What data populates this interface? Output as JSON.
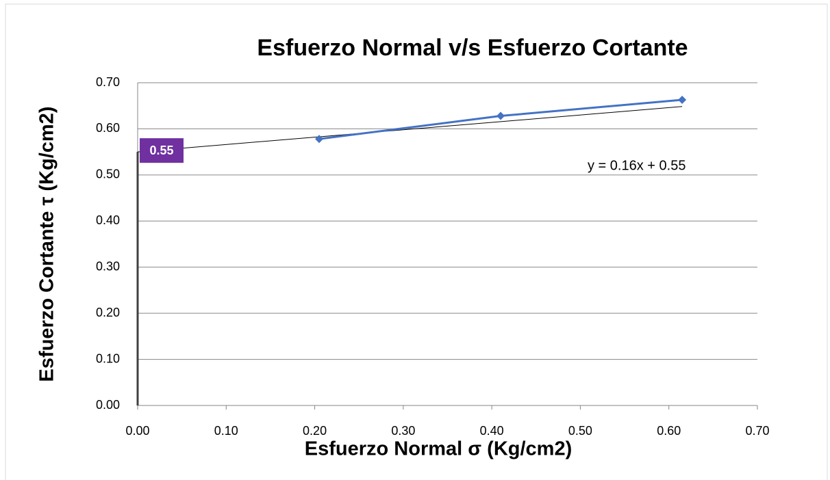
{
  "chart_data": {
    "type": "line",
    "title": "Esfuerzo Normal v/s Esfuerzo Cortante",
    "x_label": "Esfuerzo Normal σ  (Kg/cm2)",
    "y_label": "Esfuerzo Cortante  τ  (Kg/cm2)",
    "x": [
      0.205,
      0.41,
      0.615
    ],
    "series": [
      {
        "name": "Esfuerzo Cortante",
        "color": "#4472c4",
        "values": [
          0.578,
          0.628,
          0.663
        ]
      }
    ],
    "trendline": {
      "slope": 0.16,
      "intercept": 0.55,
      "label": "y = 0.16x + 0.55",
      "color": "#000000"
    },
    "annotation": {
      "text": "0.55",
      "value": 0.55,
      "color": "#7030a0"
    },
    "xlim": [
      0,
      0.7
    ],
    "ylim": [
      0,
      0.7
    ],
    "xticks": [
      {
        "value": 0,
        "label": "0.00"
      },
      {
        "value": 0.1,
        "label": "0.10"
      },
      {
        "value": 0.2,
        "label": "0.20"
      },
      {
        "value": 0.3,
        "label": "0.30"
      },
      {
        "value": 0.4,
        "label": "0.40"
      },
      {
        "value": 0.5,
        "label": "0.50"
      },
      {
        "value": 0.6,
        "label": "0.60"
      },
      {
        "value": 0.7,
        "label": "0.70"
      }
    ],
    "yticks": [
      {
        "value": 0,
        "label": "0.00"
      },
      {
        "value": 0.1,
        "label": "0.10"
      },
      {
        "value": 0.2,
        "label": "0.20"
      },
      {
        "value": 0.3,
        "label": "0.30"
      },
      {
        "value": 0.4,
        "label": "0.40"
      },
      {
        "value": 0.5,
        "label": "0.50"
      },
      {
        "value": 0.6,
        "label": "0.60"
      },
      {
        "value": 0.7,
        "label": "0.70"
      }
    ],
    "grid": true
  }
}
